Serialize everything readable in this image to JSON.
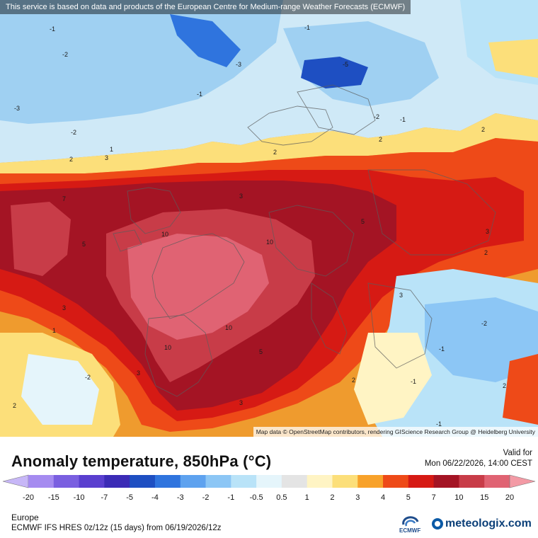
{
  "map": {
    "banner": "This service is based on data and products of the European Centre for Medium-range Weather Forecasts (ECMWF)",
    "attribution": "Map data © OpenStreetMap contributors, rendering GIScience Research Group @ Heidelberg University",
    "contour_labels": [
      "-1",
      "-2",
      "-3",
      "-5",
      "1",
      "2",
      "3",
      "5",
      "7",
      "10"
    ]
  },
  "header": {
    "title": "Anomaly temperature, 850hPa (°C)",
    "valid_label": "Valid for",
    "valid_date": "Mon 06/22/2026, 14:00 CEST"
  },
  "colorbar": {
    "ticks": [
      "-20",
      "-15",
      "-10",
      "-7",
      "-5",
      "-4",
      "-3",
      "-2",
      "-1",
      "-0.5",
      "0.5",
      "1",
      "2",
      "3",
      "4",
      "5",
      "7",
      "10",
      "15",
      "20"
    ],
    "colors": [
      "#a58bf0",
      "#7a5fe0",
      "#5a3fcf",
      "#3b2bb6",
      "#1e4fc2",
      "#2f74de",
      "#5ea2ef",
      "#8cc6f5",
      "#b9e3f8",
      "#e5f5fb",
      "#e4e4e4",
      "#fff4c4",
      "#fcdf7a",
      "#f8a22a",
      "#ee4a18",
      "#d61a14",
      "#a41424",
      "#c83c48",
      "#e06373",
      "#f39aa5"
    ]
  },
  "footer": {
    "region": "Europe",
    "model": "ECMWF IFS HRES 0z/12z (15 days) from 06/19/2026/12z",
    "ecmwf_label": "ECMWF",
    "brand": "meteologix.com"
  }
}
